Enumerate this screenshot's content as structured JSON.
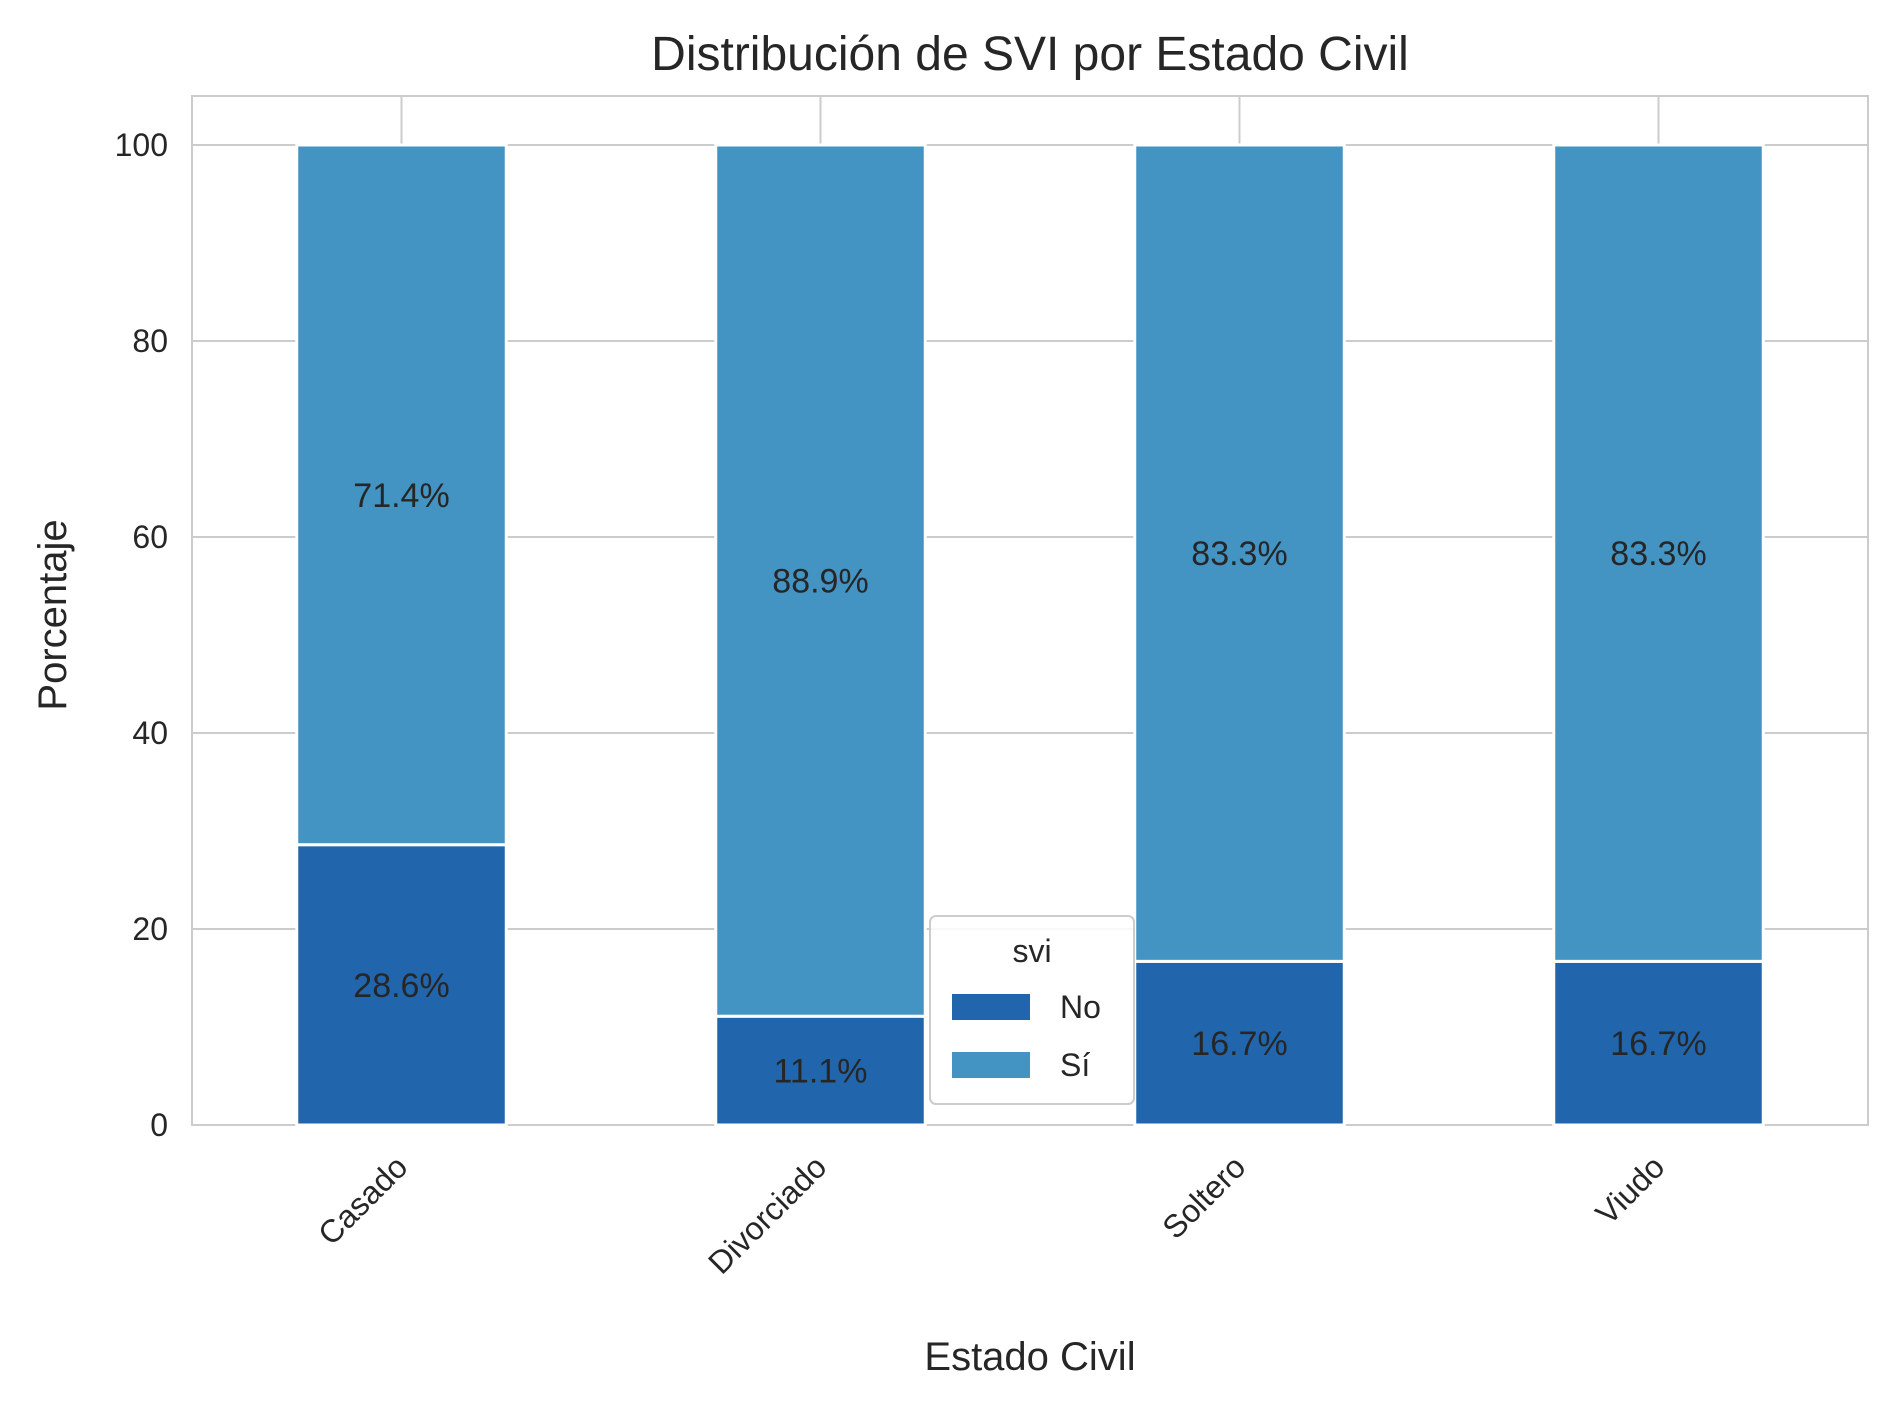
{
  "chart_data": {
    "type": "bar",
    "stacked": true,
    "title": "Distribución de SVI por Estado Civil",
    "xlabel": "Estado Civil",
    "ylabel": "Porcentaje",
    "categories": [
      "Casado",
      "Divorciado",
      "Soltero",
      "Viudo"
    ],
    "series": [
      {
        "name": "No",
        "color": "#2166ac",
        "values": [
          28.6,
          11.1,
          16.7,
          16.7
        ],
        "labels": [
          "28.6%",
          "11.1%",
          "16.7%",
          "16.7%"
        ]
      },
      {
        "name": "Sí",
        "color": "#4393c3",
        "values": [
          71.4,
          88.9,
          83.3,
          83.3
        ],
        "labels": [
          "71.4%",
          "88.9%",
          "83.3%",
          "83.3%"
        ]
      }
    ],
    "ylim": [
      0,
      105
    ],
    "yticks": [
      0,
      20,
      40,
      60,
      80,
      100
    ],
    "grid": true,
    "legend": {
      "title": "svi",
      "position": "lower-center"
    }
  }
}
